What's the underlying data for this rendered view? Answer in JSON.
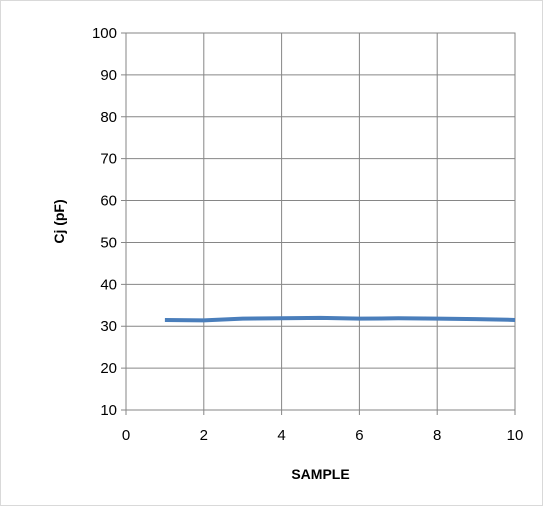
{
  "chart_data": {
    "type": "line",
    "title": "",
    "xlabel": "SAMPLE",
    "ylabel": "Cj (pF)",
    "xlim": [
      0,
      10
    ],
    "ylim": [
      10,
      100
    ],
    "x_ticks": [
      "0",
      "2",
      "4",
      "6",
      "8",
      "10"
    ],
    "y_ticks": [
      "10",
      "20",
      "30",
      "40",
      "50",
      "60",
      "70",
      "80",
      "90",
      "100"
    ],
    "grid": true,
    "legend": "none",
    "series": [
      {
        "color": "#4a7ebb",
        "x": [
          1,
          2,
          3,
          4,
          5,
          6,
          7,
          8,
          9,
          10
        ],
        "y": [
          31.5,
          31.4,
          31.8,
          31.9,
          32.0,
          31.8,
          31.9,
          31.8,
          31.7,
          31.5
        ]
      }
    ]
  }
}
